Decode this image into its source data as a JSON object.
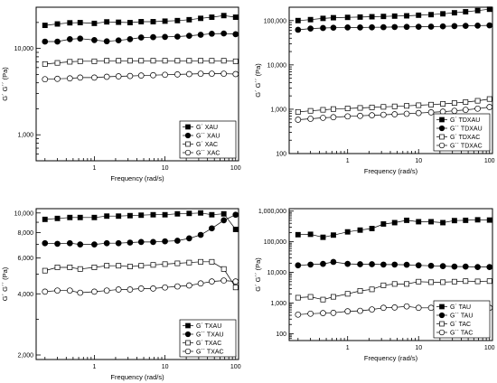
{
  "chart_data": [
    {
      "type": "scatter",
      "x_scale": "log",
      "y_scale": "log",
      "xlabel": "Frequency (rad/s)",
      "ylabel": "G´ G´´ (Pa)",
      "xlim": [
        0.15,
        110
      ],
      "ylim": [
        500,
        30000
      ],
      "x_ticks": [
        1,
        10,
        100
      ],
      "x_tick_labels": [
        "1",
        "10",
        "100"
      ],
      "y_ticks": [
        1000,
        10000
      ],
      "y_tick_labels": [
        "1,000",
        "10,000"
      ],
      "legend_position": "bottom-right",
      "x": [
        0.2,
        0.3,
        0.45,
        0.63,
        1,
        1.5,
        2.2,
        3.2,
        4.6,
        6.8,
        10,
        15,
        22,
        32,
        46,
        68,
        100
      ],
      "series": [
        {
          "name": "G´ XAU",
          "marker": "square",
          "fill": "filled",
          "values": [
            18500,
            19200,
            19800,
            19900,
            19500,
            20300,
            20100,
            19900,
            20400,
            20400,
            20700,
            21000,
            21500,
            22300,
            23000,
            24000,
            23000
          ]
        },
        {
          "name": "G´´ XAU",
          "marker": "circle",
          "fill": "filled",
          "values": [
            12000,
            12000,
            12800,
            13000,
            12500,
            12100,
            12400,
            12800,
            13400,
            13500,
            13600,
            13700,
            14000,
            14400,
            14800,
            14900,
            14600
          ]
        },
        {
          "name": "G´ XAC",
          "marker": "square",
          "fill": "open",
          "values": [
            6600,
            6800,
            7000,
            7100,
            7100,
            7200,
            7200,
            7200,
            7200,
            7200,
            7200,
            7200,
            7200,
            7200,
            7200,
            7200,
            7100
          ]
        },
        {
          "name": "G´´ XAC",
          "marker": "circle",
          "fill": "open",
          "values": [
            4400,
            4450,
            4500,
            4600,
            4600,
            4700,
            4750,
            4800,
            4850,
            4900,
            4950,
            5000,
            5050,
            5100,
            5100,
            5100,
            5050
          ]
        }
      ]
    },
    {
      "type": "scatter",
      "x_scale": "log",
      "y_scale": "log",
      "xlabel": "Frequency (rad/s)",
      "ylabel": "G´ G´´ (Pa)",
      "xlim": [
        0.15,
        110
      ],
      "ylim": [
        100,
        200000
      ],
      "x_ticks": [
        1,
        10,
        100
      ],
      "x_tick_labels": [
        "1",
        "10",
        "100"
      ],
      "y_ticks": [
        100,
        1000,
        10000,
        100000
      ],
      "y_tick_labels": [
        "100",
        "1,000",
        "10,000",
        "100,000"
      ],
      "legend_position": "bottom-right",
      "x": [
        0.2,
        0.3,
        0.45,
        0.63,
        1,
        1.5,
        2.2,
        3.2,
        4.6,
        6.8,
        10,
        15,
        22,
        32,
        46,
        68,
        100
      ],
      "series": [
        {
          "name": "G´ TDXAU",
          "marker": "square",
          "fill": "filled",
          "values": [
            100000,
            105000,
            112000,
            116000,
            118000,
            120000,
            122000,
            124000,
            126000,
            128000,
            132000,
            136000,
            142000,
            150000,
            158000,
            168000,
            180000
          ]
        },
        {
          "name": "G´´ TDXAU",
          "marker": "circle",
          "fill": "filled",
          "values": [
            62000,
            66000,
            68000,
            69000,
            70000,
            70000,
            70500,
            71000,
            71500,
            72000,
            72500,
            73000,
            74000,
            75000,
            76000,
            77000,
            78000
          ]
        },
        {
          "name": "G´ TDXAC",
          "marker": "square",
          "fill": "open",
          "values": [
            870,
            920,
            970,
            1010,
            1040,
            1070,
            1100,
            1130,
            1160,
            1190,
            1230,
            1270,
            1320,
            1380,
            1450,
            1550,
            1700
          ]
        },
        {
          "name": "G´´ TDXAC",
          "marker": "circle",
          "fill": "open",
          "values": [
            580,
            610,
            640,
            660,
            690,
            710,
            730,
            750,
            770,
            790,
            820,
            850,
            880,
            920,
            970,
            1030,
            1120
          ]
        }
      ]
    },
    {
      "type": "scatter",
      "x_scale": "log",
      "y_scale": "log",
      "xlabel": "Frequency (rad/s)",
      "ylabel": "G´ G´´ (Pa)",
      "xlim": [
        0.15,
        110
      ],
      "ylim": [
        1900,
        10500
      ],
      "x_ticks": [
        1,
        10,
        100
      ],
      "x_tick_labels": [
        "1",
        "10",
        "100"
      ],
      "y_ticks": [
        2000,
        4000,
        6000,
        8000,
        10000
      ],
      "y_tick_labels": [
        "2,000",
        "4,000",
        "6,000",
        "8,000",
        "10,000"
      ],
      "legend_position": "bottom-right",
      "x": [
        0.2,
        0.3,
        0.45,
        0.63,
        1,
        1.5,
        2.2,
        3.2,
        4.6,
        6.8,
        10,
        15,
        22,
        32,
        46,
        68,
        100
      ],
      "series": [
        {
          "name": "G´ TXAU",
          "marker": "square",
          "fill": "filled",
          "values": [
            9300,
            9400,
            9500,
            9500,
            9500,
            9650,
            9650,
            9700,
            9750,
            9800,
            9800,
            9900,
            9950,
            10000,
            9800,
            9900,
            8300
          ]
        },
        {
          "name": "G´´ TXAU",
          "marker": "circle",
          "fill": "filled",
          "values": [
            7100,
            7050,
            7100,
            7000,
            7000,
            7100,
            7100,
            7150,
            7200,
            7200,
            7250,
            7300,
            7500,
            7800,
            8400,
            9200,
            9800
          ]
        },
        {
          "name": "G´ TXAC",
          "marker": "square",
          "fill": "open",
          "values": [
            5200,
            5400,
            5400,
            5300,
            5400,
            5500,
            5500,
            5450,
            5500,
            5550,
            5600,
            5650,
            5700,
            5750,
            5750,
            5300,
            4300
          ]
        },
        {
          "name": "G´´ TXAC",
          "marker": "circle",
          "fill": "open",
          "values": [
            4100,
            4150,
            4150,
            4050,
            4100,
            4150,
            4200,
            4200,
            4250,
            4250,
            4300,
            4350,
            4400,
            4500,
            4600,
            4650,
            4600
          ]
        }
      ]
    },
    {
      "type": "scatter",
      "x_scale": "log",
      "y_scale": "log",
      "xlabel": "Frequency (rad/s)",
      "ylabel": "G´ G´´ (Pa)",
      "xlim": [
        0.15,
        110
      ],
      "ylim": [
        60,
        1200000
      ],
      "x_ticks": [
        1,
        10,
        100
      ],
      "x_tick_labels": [
        "1",
        "10",
        "100"
      ],
      "y_ticks": [
        100,
        1000,
        10000,
        100000,
        1000000
      ],
      "y_tick_labels": [
        "100",
        "1,000",
        "10,000",
        "100,000",
        "1,000,000"
      ],
      "legend_position": "bottom-right",
      "x": [
        0.2,
        0.3,
        0.45,
        0.63,
        1,
        1.5,
        2.2,
        3.2,
        4.6,
        6.8,
        10,
        15,
        22,
        32,
        46,
        68,
        100
      ],
      "series": [
        {
          "name": "G´ TAU",
          "marker": "square",
          "fill": "filled",
          "values": [
            170000,
            175000,
            140000,
            165000,
            210000,
            240000,
            270000,
            380000,
            420000,
            500000,
            450000,
            450000,
            420000,
            490000,
            500000,
            520000,
            510000
          ]
        },
        {
          "name": "G´´ TAU",
          "marker": "circle",
          "fill": "filled",
          "values": [
            17000,
            18000,
            19000,
            22000,
            19000,
            18500,
            18500,
            18000,
            18000,
            17800,
            17000,
            16500,
            16000,
            15500,
            15500,
            15000,
            15000
          ]
        },
        {
          "name": "G´ TAC",
          "marker": "square",
          "fill": "open",
          "values": [
            1500,
            1600,
            1300,
            1600,
            2000,
            2500,
            2800,
            3800,
            4200,
            4200,
            5000,
            4800,
            4800,
            5000,
            5200,
            5100,
            5200
          ]
        },
        {
          "name": "G´´ TAC",
          "marker": "circle",
          "fill": "open",
          "values": [
            420,
            450,
            470,
            480,
            540,
            560,
            620,
            700,
            720,
            780,
            700,
            700,
            680,
            700,
            720,
            700,
            700
          ]
        }
      ]
    }
  ]
}
